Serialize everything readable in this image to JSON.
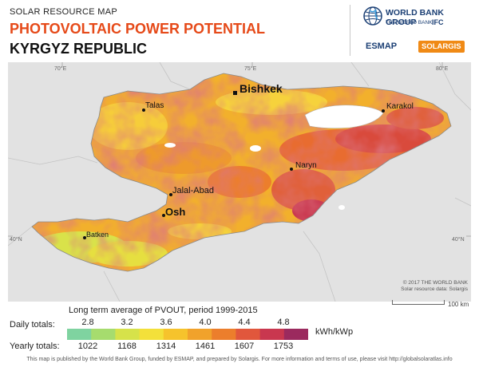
{
  "header": {
    "overline": "SOLAR RESOURCE MAP",
    "title": "PHOTOVOLTAIC POWER POTENTIAL",
    "country": "KYRGYZ REPUBLIC"
  },
  "logos": {
    "wbg_title": "WORLD BANK GROUP",
    "wbg_sub": "THE WORLD BANK",
    "ifc": "IFC",
    "esmap": "ESMAP",
    "solargis": "SOLARGIS"
  },
  "map": {
    "graticule": [
      "70°E",
      "75°E",
      "80°E",
      "40°N",
      "40°N"
    ],
    "cities": [
      "Bishkek",
      "Karakol",
      "Talas",
      "Naryn",
      "Jalal-Abad",
      "Osh",
      "Batken"
    ],
    "copyright": "© 2017 THE WORLD BANK",
    "source": "Solar resource data: Solargis",
    "scale_label": "100 km"
  },
  "legend": {
    "title": "Long term average of PVOUT, period 1999-2015",
    "daily_label": "Daily totals:",
    "yearly_label": "Yearly totals:",
    "daily_values": [
      "2.8",
      "3.2",
      "3.6",
      "4.0",
      "4.4",
      "4.8"
    ],
    "yearly_values": [
      "1022",
      "1168",
      "1314",
      "1461",
      "1607",
      "1753"
    ],
    "unit": "kWh/kWp",
    "colors": [
      "#7fd3a0",
      "#a6dc6e",
      "#d6e24a",
      "#f3e03a",
      "#f6c32c",
      "#f1a22b",
      "#ec7e2c",
      "#e1573c",
      "#c9374f",
      "#9b2a5e"
    ]
  },
  "footer": {
    "text": "This map is published by the World Bank Group, funded by ESMAP, and prepared by Solargis. For more information and terms of use, please visit",
    "link": "http://globalsolaratlas.info"
  }
}
